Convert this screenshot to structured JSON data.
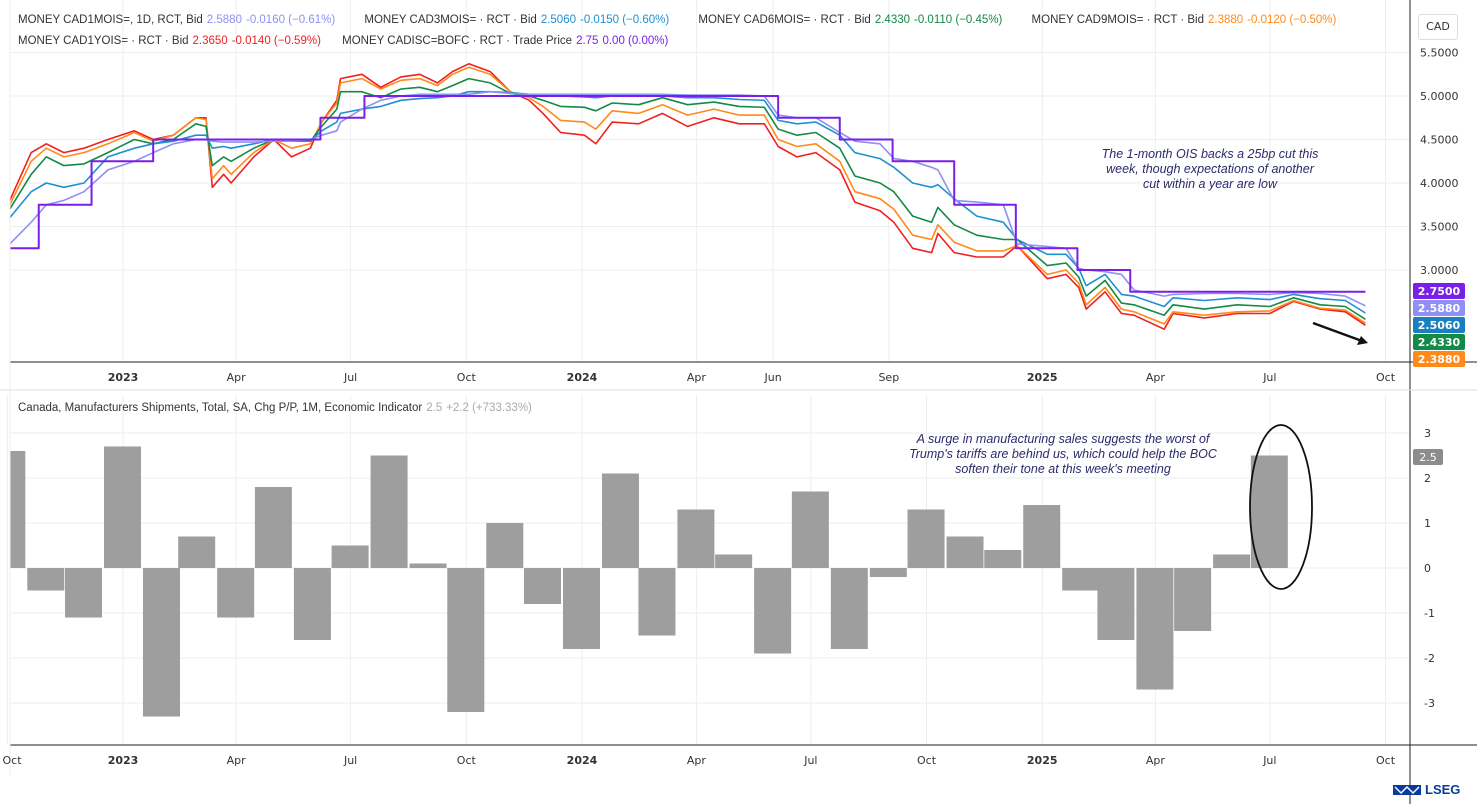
{
  "top_legend": [
    {
      "name": "MONEY CAD1MOIS=, 1D, RCT, Bid",
      "value": "2.5880",
      "change": "-0.0160 (−0.61%)",
      "color": "#8f8ff5"
    },
    {
      "name": "MONEY CAD3MOIS= · RCT · Bid",
      "value": "2.5060",
      "change": "-0.0150 (−0.60%)",
      "color": "#1e90d0"
    },
    {
      "name": "MONEY CAD6MOIS= · RCT · Bid",
      "value": "2.4330",
      "change": "-0.0110 (−0.45%)",
      "color": "#138a45"
    },
    {
      "name": "MONEY CAD9MOIS= · RCT · Bid",
      "value": "2.3880",
      "change": "-0.0120 (−0.50%)",
      "color": "#ff8a1a"
    },
    {
      "name": "MONEY CAD1YOIS= · RCT · Bid",
      "value": "2.3650",
      "change": "-0.0140 (−0.59%)",
      "color": "#f02020"
    },
    {
      "name": "MONEY CADISC=BOFC · RCT · Trade Price",
      "value": "2.75",
      "change": "0.00 (0.00%)",
      "color": "#7a1fe8"
    }
  ],
  "currency_label": "CAD",
  "top_note": "The 1-month OIS backs a 25bp cut this week, though expectations of another cut within a year are low",
  "bottom_note": "A surge in manufacturing sales suggests the worst of Trump's tariffs are behind us, which could help the BOC soften their tone at this week's meeting",
  "bottom_legend": {
    "name": "Canada, Manufacturers Shipments, Total, SA, Chg P/P, 1M, Economic Indicator",
    "value": "2.5",
    "change": "+2.2 (+733.33%)"
  },
  "logo_text": "LSEG",
  "chart_data": [
    {
      "type": "line",
      "ylabel": "CAD",
      "ylim": [
        1.94,
        5.55
      ],
      "yticks": [
        "5.5000",
        "5.0000",
        "4.5000",
        "4.0000",
        "3.5000",
        "3.0000"
      ],
      "xticks": [
        {
          "date": "2023-01-01",
          "label": "2023",
          "bold": true
        },
        {
          "date": "2023-04-01",
          "label": "Apr"
        },
        {
          "date": "2023-07-01",
          "label": "Jul"
        },
        {
          "date": "2023-10-01",
          "label": "Oct"
        },
        {
          "date": "2024-01-01",
          "label": "2024",
          "bold": true
        },
        {
          "date": "2024-04-01",
          "label": "Apr"
        },
        {
          "date": "2024-06-01",
          "label": "Jun"
        },
        {
          "date": "2024-09-01",
          "label": "Sep"
        },
        {
          "date": "2025-01-01",
          "label": "2025",
          "bold": true
        },
        {
          "date": "2025-04-01",
          "label": "Apr"
        },
        {
          "date": "2025-07-01",
          "label": "Jul"
        },
        {
          "date": "2025-10-01",
          "label": "Oct"
        }
      ],
      "grid": true,
      "x": [
        "2022-10-03",
        "2022-10-20",
        "2022-11-01",
        "2022-11-15",
        "2022-12-01",
        "2022-12-20",
        "2023-01-10",
        "2023-01-25",
        "2023-02-10",
        "2023-02-28",
        "2023-03-08",
        "2023-03-13",
        "2023-03-22",
        "2023-03-28",
        "2023-04-15",
        "2023-05-01",
        "2023-05-15",
        "2023-05-30",
        "2023-06-08",
        "2023-06-20",
        "2023-06-23",
        "2023-07-10",
        "2023-07-25",
        "2023-08-10",
        "2023-08-25",
        "2023-09-08",
        "2023-09-20",
        "2023-10-03",
        "2023-10-20",
        "2023-11-05",
        "2023-11-20",
        "2023-12-01",
        "2023-12-15",
        "2024-01-03",
        "2024-01-12",
        "2024-01-25",
        "2024-02-15",
        "2024-03-05",
        "2024-03-25",
        "2024-04-15",
        "2024-05-05",
        "2024-05-25",
        "2024-06-05",
        "2024-06-20",
        "2024-07-05",
        "2024-07-24",
        "2024-08-05",
        "2024-08-25",
        "2024-09-05",
        "2024-09-20",
        "2024-10-05",
        "2024-10-10",
        "2024-10-23",
        "2024-11-10",
        "2024-12-01",
        "2024-12-12",
        "2025-01-05",
        "2025-01-20",
        "2025-01-30",
        "2025-02-05",
        "2025-02-20",
        "2025-03-05",
        "2025-03-15",
        "2025-04-08",
        "2025-04-15",
        "2025-05-10",
        "2025-06-05",
        "2025-07-01",
        "2025-07-20",
        "2025-08-10",
        "2025-08-30",
        "2025-09-15"
      ],
      "series": [
        {
          "name": "MONEY CAD1YOIS=",
          "color": "#f02020",
          "values": [
            3.8,
            4.35,
            4.45,
            4.35,
            4.4,
            4.5,
            4.6,
            4.5,
            4.55,
            4.75,
            4.75,
            3.95,
            4.1,
            4.0,
            4.3,
            4.5,
            4.3,
            4.4,
            4.7,
            4.95,
            5.2,
            5.25,
            5.1,
            5.22,
            5.25,
            5.15,
            5.28,
            5.37,
            5.28,
            5.05,
            4.95,
            4.8,
            4.58,
            4.55,
            4.45,
            4.7,
            4.68,
            4.8,
            4.65,
            4.75,
            4.68,
            4.68,
            4.42,
            4.3,
            4.35,
            4.15,
            3.78,
            3.68,
            3.55,
            3.25,
            3.2,
            3.42,
            3.2,
            3.15,
            3.15,
            3.28,
            2.9,
            2.95,
            2.8,
            2.55,
            2.75,
            2.5,
            2.48,
            2.32,
            2.5,
            2.45,
            2.5,
            2.5,
            2.64,
            2.55,
            2.52,
            2.365
          ]
        },
        {
          "name": "MONEY CAD9MOIS=",
          "color": "#ff8a1a",
          "values": [
            3.75,
            4.25,
            4.4,
            4.3,
            4.35,
            4.45,
            4.58,
            4.48,
            4.55,
            4.75,
            4.73,
            4.05,
            4.2,
            4.1,
            4.35,
            4.5,
            4.4,
            4.45,
            4.7,
            4.92,
            5.15,
            5.2,
            5.08,
            5.18,
            5.2,
            5.12,
            5.25,
            5.33,
            5.25,
            5.05,
            4.98,
            4.88,
            4.72,
            4.7,
            4.62,
            4.83,
            4.8,
            4.9,
            4.78,
            4.85,
            4.78,
            4.78,
            4.5,
            4.42,
            4.45,
            4.25,
            3.9,
            3.82,
            3.7,
            3.4,
            3.35,
            3.52,
            3.32,
            3.22,
            3.22,
            3.28,
            2.95,
            3.0,
            2.85,
            2.6,
            2.8,
            2.55,
            2.52,
            2.38,
            2.52,
            2.48,
            2.52,
            2.53,
            2.65,
            2.56,
            2.54,
            2.388
          ]
        },
        {
          "name": "MONEY CAD6MOIS=",
          "color": "#138a45",
          "values": [
            3.7,
            4.1,
            4.3,
            4.2,
            4.22,
            4.35,
            4.5,
            4.45,
            4.5,
            4.68,
            4.65,
            4.2,
            4.3,
            4.25,
            4.4,
            4.5,
            4.48,
            4.48,
            4.65,
            4.85,
            5.05,
            5.05,
            4.98,
            5.08,
            5.1,
            5.05,
            5.12,
            5.2,
            5.15,
            5.03,
            5.0,
            4.95,
            4.88,
            4.87,
            4.83,
            4.92,
            4.9,
            4.98,
            4.9,
            4.93,
            4.88,
            4.87,
            4.62,
            4.55,
            4.58,
            4.4,
            4.08,
            4.0,
            3.9,
            3.62,
            3.55,
            3.72,
            3.52,
            3.4,
            3.35,
            3.35,
            3.05,
            3.08,
            2.92,
            2.7,
            2.88,
            2.62,
            2.6,
            2.48,
            2.6,
            2.55,
            2.6,
            2.58,
            2.68,
            2.6,
            2.58,
            2.433
          ]
        },
        {
          "name": "MONEY CAD3MOIS=",
          "color": "#1e90d0",
          "values": [
            3.6,
            3.9,
            4.0,
            3.95,
            4.0,
            4.3,
            4.4,
            4.45,
            4.48,
            4.55,
            4.55,
            4.4,
            4.42,
            4.4,
            4.45,
            4.5,
            4.48,
            4.48,
            4.6,
            4.7,
            4.8,
            4.85,
            4.88,
            4.95,
            4.97,
            4.98,
            5.0,
            5.05,
            5.05,
            5.04,
            5.02,
            5.0,
            5.0,
            4.99,
            4.98,
            5.0,
            5.0,
            5.0,
            4.98,
            4.98,
            4.96,
            4.95,
            4.72,
            4.68,
            4.7,
            4.55,
            4.35,
            4.28,
            4.18,
            4.0,
            3.95,
            3.98,
            3.82,
            3.62,
            3.55,
            3.35,
            3.18,
            3.18,
            3.02,
            2.82,
            2.95,
            2.72,
            2.7,
            2.58,
            2.68,
            2.65,
            2.68,
            2.66,
            2.72,
            2.67,
            2.65,
            2.506
          ]
        },
        {
          "name": "MONEY CAD1MOIS=",
          "color": "#8f8ff5",
          "values": [
            3.3,
            3.55,
            3.75,
            3.8,
            3.9,
            4.15,
            4.25,
            4.35,
            4.45,
            4.5,
            4.5,
            4.48,
            4.47,
            4.47,
            4.47,
            4.48,
            4.48,
            4.5,
            4.55,
            4.6,
            4.7,
            4.85,
            4.95,
            5.0,
            5.02,
            5.02,
            5.02,
            5.02,
            5.05,
            5.03,
            5.02,
            5.02,
            5.02,
            5.02,
            5.02,
            5.02,
            5.02,
            5.02,
            5.01,
            5.01,
            5.01,
            5.0,
            4.78,
            4.75,
            4.75,
            4.58,
            4.48,
            4.45,
            4.28,
            4.25,
            4.18,
            4.15,
            3.8,
            3.78,
            3.75,
            3.3,
            3.27,
            3.25,
            3.02,
            3.0,
            2.98,
            2.95,
            2.77,
            2.7,
            2.72,
            2.73,
            2.73,
            2.72,
            2.74,
            2.73,
            2.7,
            2.588
          ]
        },
        {
          "name": "MONEY CADISC=BOFC",
          "color": "#7a1fe8",
          "step": true,
          "x": [
            "2022-10-03",
            "2022-10-26",
            "2022-12-07",
            "2023-01-25",
            "2023-06-07",
            "2023-07-12",
            "2024-06-05",
            "2024-07-24",
            "2024-09-04",
            "2024-10-23",
            "2024-12-11",
            "2025-01-29",
            "2025-03-12",
            "2025-09-15"
          ],
          "values": [
            3.25,
            3.75,
            4.25,
            4.5,
            4.75,
            5.0,
            4.75,
            4.5,
            4.25,
            3.75,
            3.25,
            3.0,
            2.75,
            2.75
          ]
        }
      ],
      "last_value_badges": [
        {
          "label": "2.7500",
          "color": "#7a1fe8"
        },
        {
          "label": "2.5880",
          "color": "#8f8ff5"
        },
        {
          "label": "2.5060",
          "color": "#1a7fc0"
        },
        {
          "label": "2.4330",
          "color": "#138a45"
        },
        {
          "label": "2.3880",
          "color": "#ff8a1a"
        }
      ]
    },
    {
      "type": "bar",
      "color": "#9e9e9e",
      "ylim": [
        -3.95,
        3.8
      ],
      "yticks": [
        "3",
        "2",
        "1",
        "0",
        "-1",
        "-2",
        "-3"
      ],
      "grid": true,
      "xticks": [
        {
          "date": "2022-10-01",
          "label": "Oct"
        },
        {
          "date": "2023-01-01",
          "label": "2023",
          "bold": true
        },
        {
          "date": "2023-04-01",
          "label": "Apr"
        },
        {
          "date": "2023-07-01",
          "label": "Jul"
        },
        {
          "date": "2023-10-01",
          "label": "Oct"
        },
        {
          "date": "2024-01-01",
          "label": "2024",
          "bold": true
        },
        {
          "date": "2024-04-01",
          "label": "Apr"
        },
        {
          "date": "2024-07-01",
          "label": "Jul"
        },
        {
          "date": "2024-10-01",
          "label": "Oct"
        },
        {
          "date": "2025-01-01",
          "label": "2025",
          "bold": true
        },
        {
          "date": "2025-04-01",
          "label": "Apr"
        },
        {
          "date": "2025-07-01",
          "label": "Jul"
        },
        {
          "date": "2025-10-01",
          "label": "Oct"
        }
      ],
      "categories": [
        "2022-10",
        "2022-11",
        "2022-12",
        "2023-01",
        "2023-02",
        "2023-03",
        "2023-04",
        "2023-05",
        "2023-06",
        "2023-07",
        "2023-08",
        "2023-09",
        "2023-10",
        "2023-11",
        "2023-12",
        "2024-01",
        "2024-02",
        "2024-03",
        "2024-04",
        "2024-05",
        "2024-06",
        "2024-07",
        "2024-08",
        "2024-09",
        "2024-10",
        "2024-11",
        "2024-12",
        "2025-01",
        "2025-02",
        "2025-03",
        "2025-04",
        "2025-05",
        "2025-06",
        "2025-07"
      ],
      "values": [
        2.6,
        -0.5,
        -1.1,
        2.7,
        -3.3,
        0.7,
        -1.1,
        1.8,
        -1.6,
        0.5,
        2.5,
        0.1,
        -3.2,
        1.0,
        -0.8,
        -1.8,
        2.1,
        -1.5,
        1.3,
        0.3,
        -1.9,
        1.7,
        -1.8,
        -0.2,
        1.3,
        0.7,
        0.4,
        1.4,
        -0.5,
        -1.6,
        -2.7,
        -1.4,
        0.3,
        2.5
      ],
      "last_value_badge": {
        "label": "2.5",
        "color": "#8c8c8c"
      }
    }
  ]
}
